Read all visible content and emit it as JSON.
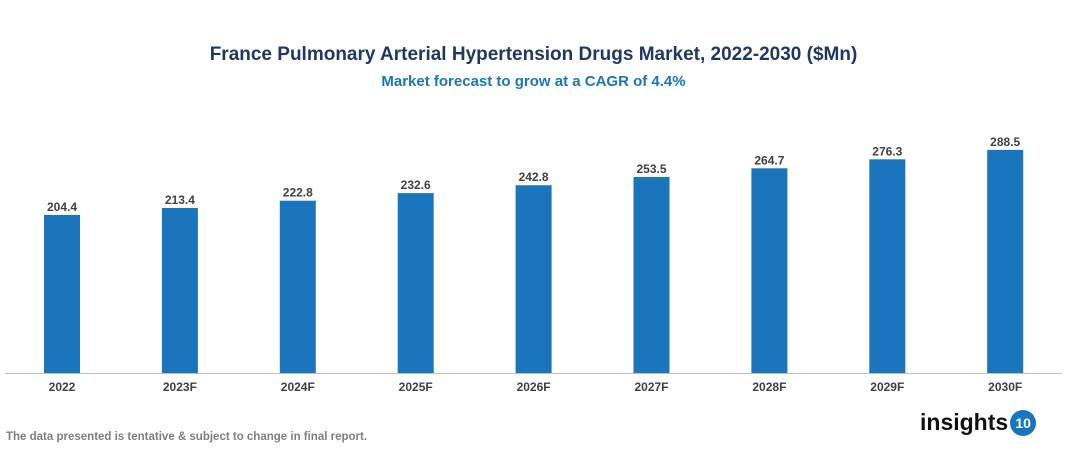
{
  "chart_data": {
    "type": "bar",
    "title": "France Pulmonary Arterial Hypertension Drugs Market, 2022-2030 ($Mn)",
    "subtitle": "Market forecast to grow at a CAGR of 4.4%",
    "categories": [
      "2022",
      "2023F",
      "2024F",
      "2025F",
      "2026F",
      "2027F",
      "2028F",
      "2029F",
      "2030F"
    ],
    "values": [
      204.4,
      213.4,
      222.8,
      232.6,
      242.8,
      253.5,
      264.7,
      276.3,
      288.5
    ],
    "xlabel": "",
    "ylabel": "",
    "ylim": [
      0,
      353
    ],
    "grid": false,
    "bar_color": "#1a75bc"
  },
  "footer": {
    "note": "The data presented is tentative & subject to change in final report.",
    "logo_text": "insights",
    "logo_number": "10"
  }
}
